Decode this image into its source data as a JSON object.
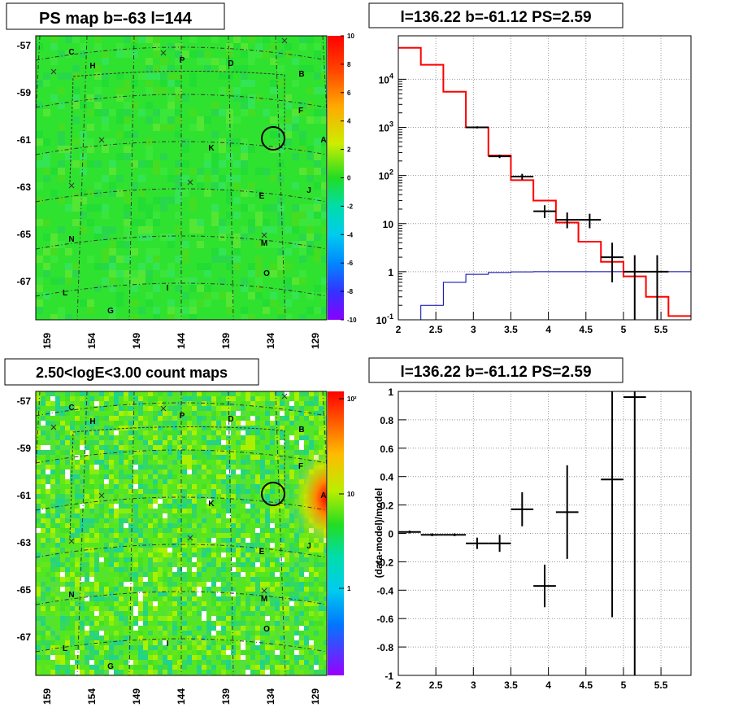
{
  "panels": {
    "top_left": {
      "title": "PS map b=-63 l=144",
      "y_ticks": [
        "-57",
        "-59",
        "-61",
        "-63",
        "-65",
        "-67"
      ],
      "x_ticks": [
        "159",
        "154",
        "149",
        "144",
        "139",
        "134",
        "129"
      ],
      "colorbar_ticks": [
        "10",
        "8",
        "6",
        "4",
        "2",
        "0",
        "-2",
        "-4",
        "-6",
        "-8",
        "-10"
      ],
      "source_labels": [
        "C",
        "H",
        "P",
        "D",
        "B",
        "F",
        "A",
        "K",
        "E",
        "J",
        "N",
        "M",
        "O",
        "L",
        "I",
        "G"
      ]
    },
    "top_right": {
      "title": "l=136.22 b=-61.12 PS=2.59"
    },
    "bottom_left": {
      "title": "2.50<logE<3.00 count maps",
      "y_ticks": [
        "-57",
        "-59",
        "-61",
        "-63",
        "-65",
        "-67"
      ],
      "x_ticks": [
        "159",
        "154",
        "149",
        "144",
        "139",
        "134",
        "129"
      ],
      "colorbar_ticks": [
        "10²",
        "10",
        "1"
      ],
      "source_labels": [
        "C",
        "H",
        "P",
        "D",
        "B",
        "F",
        "A",
        "K",
        "E",
        "J",
        "N",
        "M",
        "O",
        "L",
        "I",
        "G"
      ]
    },
    "bottom_right": {
      "title": "l=136.22 b=-61.12 PS=2.59"
    }
  },
  "colors": {
    "model_line": "#ff0000",
    "background_line": "#0000aa",
    "data_points": "#000000",
    "map_base": "#2fe22f"
  },
  "chart_data": [
    {
      "type": "heatmap",
      "title": "PS map b=-63 l=144",
      "xlabel": "",
      "ylabel": "",
      "x_ticks": [
        159,
        154,
        149,
        144,
        139,
        134,
        129
      ],
      "y_ticks": [
        -57,
        -59,
        -61,
        -63,
        -65,
        -67
      ],
      "zlim": [
        -10,
        10
      ],
      "circle_marker": {
        "l": 133.5,
        "b": -61.0
      }
    },
    {
      "type": "line",
      "title": "l=136.22 b=-61.12 PS=2.59",
      "xlabel": "",
      "ylabel": "",
      "xlim": [
        2,
        5.9
      ],
      "ylim": [
        0.1,
        80000
      ],
      "yscale": "log",
      "y_tick_labels": [
        "10^-1",
        "1",
        "10",
        "10^2",
        "10^3",
        "10^4"
      ],
      "x_tick_labels": [
        "2",
        "2.5",
        "3",
        "3.5",
        "4",
        "4.5",
        "5",
        "5.5"
      ],
      "series": [
        {
          "name": "",
          "step_edges": [
            2.0,
            2.3,
            2.6,
            2.9,
            3.2,
            3.5,
            3.8,
            4.1,
            4.4,
            4.7,
            5.0,
            5.3,
            5.6,
            5.9
          ],
          "values": [
            45000,
            20000,
            5500,
            1000,
            260,
            80,
            30,
            10.5,
            4.2,
            1.6,
            0.8,
            0.3,
            0.12
          ]
        },
        {
          "name": "",
          "step_edges": [
            2.0,
            2.3,
            2.6,
            2.9,
            3.2,
            3.5,
            3.8,
            4.1,
            4.4,
            4.7,
            5.0,
            5.3,
            5.6,
            5.9
          ],
          "values": [
            0.1,
            0.2,
            0.6,
            0.88,
            0.96,
            0.99,
            1.0,
            1.0,
            1.0,
            1.0,
            1.0,
            1.0,
            1.0
          ]
        },
        {
          "name": "",
          "points": [
            {
              "x": 3.05,
              "xerr": 0.15,
              "y": 1000,
              "ylo": 950,
              "yhi": 1050
            },
            {
              "x": 3.35,
              "xerr": 0.15,
              "y": 250,
              "ylo": 230,
              "yhi": 270
            },
            {
              "x": 3.65,
              "xerr": 0.15,
              "y": 95,
              "ylo": 82,
              "yhi": 108
            },
            {
              "x": 3.95,
              "xerr": 0.15,
              "y": 18,
              "ylo": 13,
              "yhi": 24
            },
            {
              "x": 4.25,
              "xerr": 0.15,
              "y": 12,
              "ylo": 8,
              "yhi": 17
            },
            {
              "x": 4.55,
              "xerr": 0.15,
              "y": 12,
              "ylo": 8,
              "yhi": 16
            },
            {
              "x": 4.85,
              "xerr": 0.15,
              "y": 2,
              "ylo": 0.6,
              "yhi": 4
            },
            {
              "x": 5.15,
              "xerr": 0.15,
              "y": 1,
              "ylo": 0.1,
              "yhi": 2.2
            },
            {
              "x": 5.45,
              "xerr": 0.15,
              "y": 1,
              "ylo": 0.1,
              "yhi": 2.2
            }
          ]
        }
      ]
    },
    {
      "type": "heatmap",
      "title": "2.50<logE<3.00 count maps",
      "xlabel": "",
      "ylabel": "",
      "x_ticks": [
        159,
        154,
        149,
        144,
        139,
        134,
        129
      ],
      "y_ticks": [
        -57,
        -59,
        -61,
        -63,
        -65,
        -67
      ],
      "zscale": "log",
      "zlim": [
        0.3,
        150
      ],
      "circle_marker": {
        "l": 133.5,
        "b": -61.0
      }
    },
    {
      "type": "scatter",
      "title": "l=136.22 b=-61.12 PS=2.59",
      "xlabel": "",
      "ylabel": "(data-model)/model",
      "xlim": [
        2,
        5.9
      ],
      "ylim": [
        -1,
        1
      ],
      "x_tick_labels": [
        "2",
        "2.5",
        "3",
        "3.5",
        "4",
        "4.5",
        "5",
        "5.5"
      ],
      "y_tick_labels": [
        "1",
        "0.8",
        "0.6",
        "0.4",
        "0.2",
        "0",
        "-0.2",
        "-0.4",
        "-0.6",
        "-0.8",
        "-1"
      ],
      "points": [
        {
          "x": 2.15,
          "xerr": 0.15,
          "y": 0.01,
          "ylo": 0.0,
          "yhi": 0.02
        },
        {
          "x": 2.45,
          "xerr": 0.15,
          "y": -0.01,
          "ylo": -0.02,
          "yhi": 0.0
        },
        {
          "x": 2.75,
          "xerr": 0.15,
          "y": -0.01,
          "ylo": -0.02,
          "yhi": 0.0
        },
        {
          "x": 3.05,
          "xerr": 0.15,
          "y": -0.07,
          "ylo": -0.11,
          "yhi": -0.03
        },
        {
          "x": 3.35,
          "xerr": 0.15,
          "y": -0.07,
          "ylo": -0.13,
          "yhi": -0.01
        },
        {
          "x": 3.65,
          "xerr": 0.15,
          "y": 0.17,
          "ylo": 0.05,
          "yhi": 0.29
        },
        {
          "x": 3.95,
          "xerr": 0.15,
          "y": -0.37,
          "ylo": -0.52,
          "yhi": -0.22
        },
        {
          "x": 4.25,
          "xerr": 0.15,
          "y": 0.15,
          "ylo": -0.18,
          "yhi": 0.48
        },
        {
          "x": 4.85,
          "xerr": 0.15,
          "y": 0.38,
          "ylo": -0.59,
          "yhi": 1.0
        },
        {
          "x": 5.15,
          "xerr": 0.15,
          "y": 0.96,
          "ylo": -1.0,
          "yhi": 1.0
        }
      ]
    }
  ]
}
